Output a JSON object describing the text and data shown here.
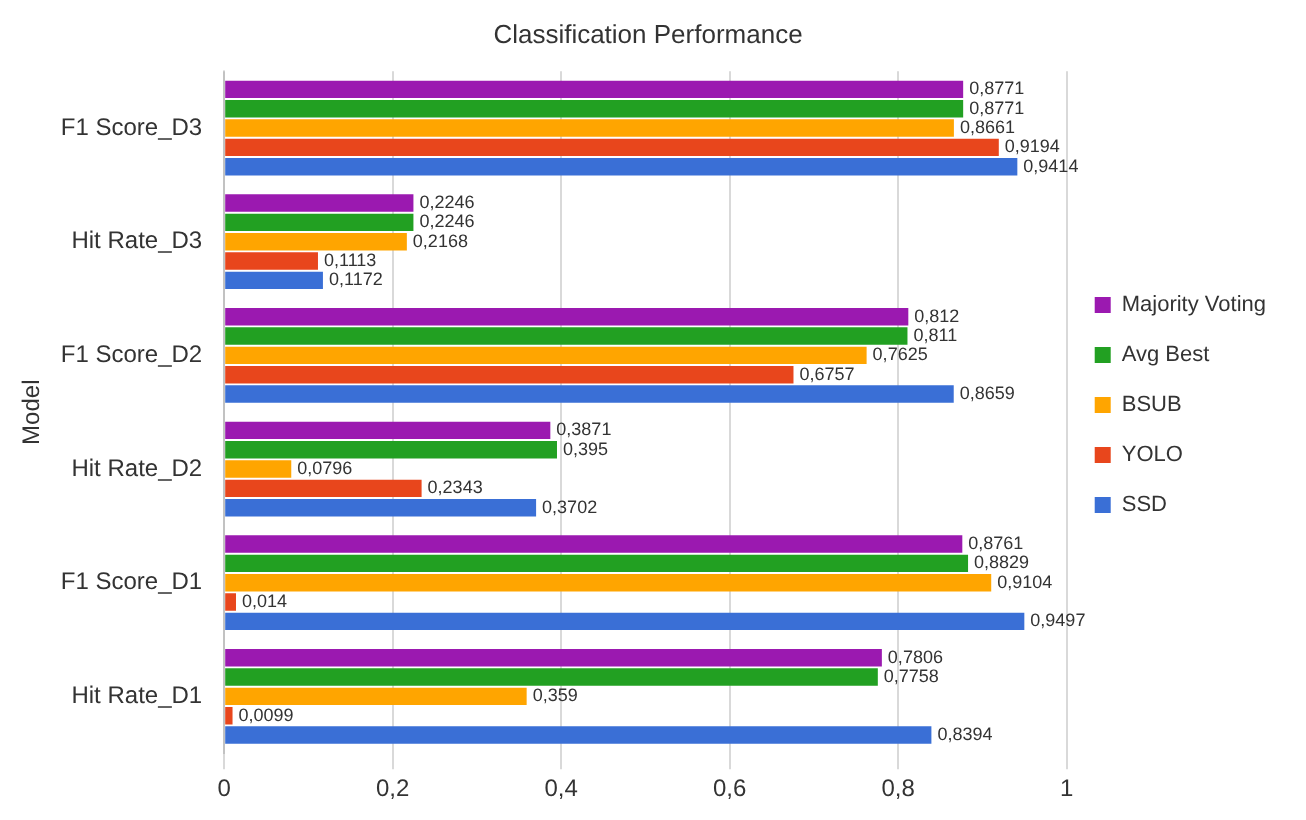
{
  "chart_data": {
    "type": "bar",
    "orientation": "horizontal",
    "title": "Classification Performance",
    "ylabel": "Model",
    "categories": [
      "F1 Score_D3",
      "Hit Rate_D3",
      "F1 Score_D2",
      "Hit Rate_D2",
      "F1 Score_D1",
      "Hit Rate_D1"
    ],
    "series": [
      {
        "name": "Majority Voting",
        "color": "#9b19b0",
        "values": [
          0.8771,
          0.2246,
          0.812,
          0.3871,
          0.8761,
          0.7806
        ],
        "value_labels": [
          "0,8771",
          "0,2246",
          "0,812",
          "0,3871",
          "0,8761",
          "0,7806"
        ]
      },
      {
        "name": "Avg Best",
        "color": "#22a022",
        "values": [
          0.8771,
          0.2246,
          0.811,
          0.395,
          0.8829,
          0.7758
        ],
        "value_labels": [
          "0,8771",
          "0,2246",
          "0,811",
          "0,395",
          "0,8829",
          "0,7758"
        ]
      },
      {
        "name": "BSUB",
        "color": "#ffa500",
        "values": [
          0.8661,
          0.2168,
          0.7625,
          0.0796,
          0.9104,
          0.359
        ],
        "value_labels": [
          "0,8661",
          "0,2168",
          "0,7625",
          "0,0796",
          "0,9104",
          "0,359"
        ]
      },
      {
        "name": "YOLO",
        "color": "#e8461c",
        "values": [
          0.9194,
          0.1113,
          0.6757,
          0.2343,
          0.014,
          0.0099
        ],
        "value_labels": [
          "0,9194",
          "0,1113",
          "0,6757",
          "0,2343",
          "0,014",
          "0,0099"
        ]
      },
      {
        "name": "SSD",
        "color": "#3a6fd6",
        "values": [
          0.9414,
          0.1172,
          0.8659,
          0.3702,
          0.9497,
          0.8394
        ],
        "value_labels": [
          "0,9414",
          "0,1172",
          "0,8659",
          "0,3702",
          "0,9497",
          "0,8394"
        ]
      }
    ],
    "xlim": [
      0,
      1
    ],
    "xticks": [
      0,
      {
        "value": 0.2,
        "label": "0,2"
      },
      {
        "value": 0.4,
        "label": "0,4"
      },
      {
        "value": 0.6,
        "label": "0,6"
      },
      {
        "value": 0.8,
        "label": "0,8"
      },
      1
    ],
    "grid": "x",
    "legend": "right"
  }
}
